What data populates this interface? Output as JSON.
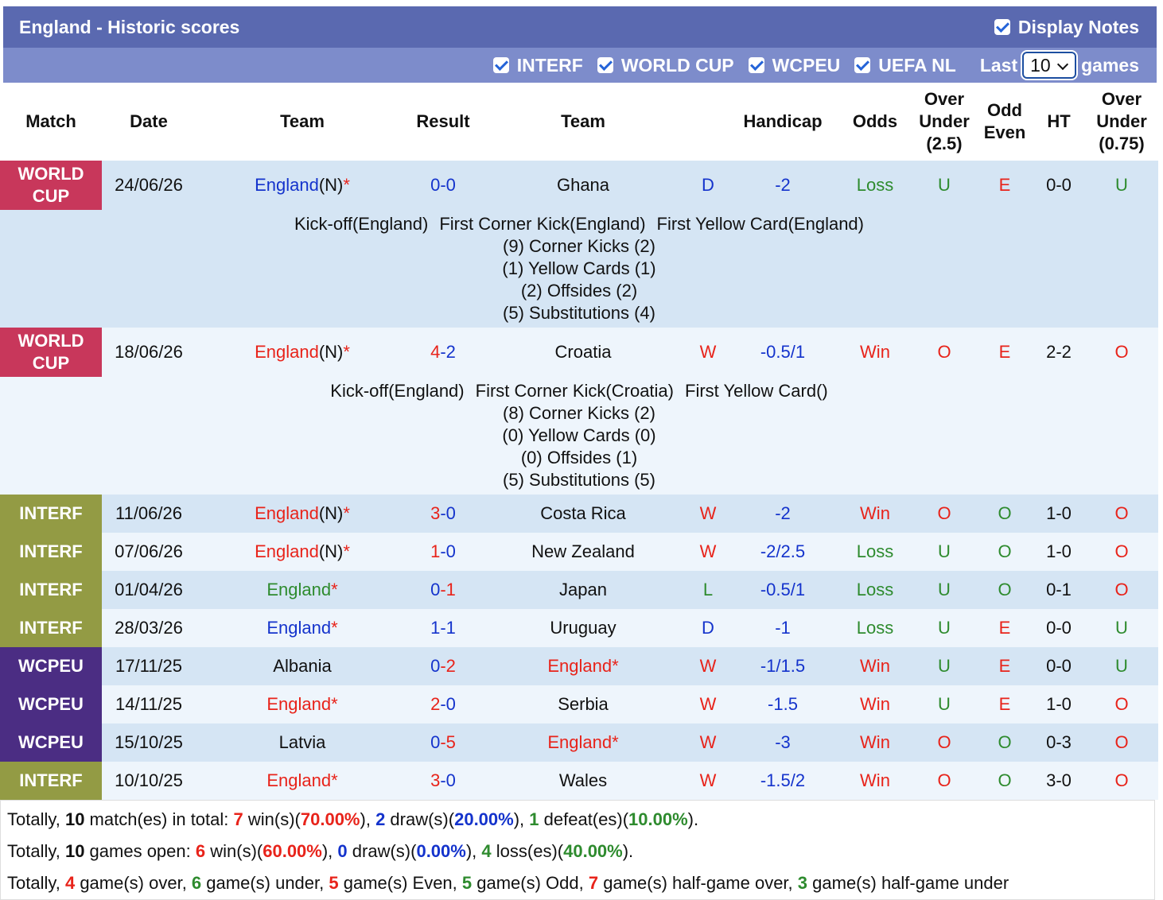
{
  "header": {
    "title": "England - Historic scores",
    "display_notes": "Display Notes"
  },
  "filters": {
    "items": [
      "INTERF",
      "WORLD CUP",
      "WCPEU",
      "UEFA NL"
    ],
    "last_label": "Last",
    "last_value": "10",
    "games_label": "games"
  },
  "palette": {
    "r": "#e8231a",
    "b": "#1433cc",
    "g": "#2e8b2e",
    "k": "#111111",
    "B": "#111111"
  },
  "table": {
    "columns": [
      "Match",
      "Date",
      "Team",
      "Result",
      "Team",
      "Handicap",
      "Odds",
      "Over Under (2.5)",
      "Odd Even",
      "HT",
      "Over Under (0.75)"
    ],
    "rows": [
      {
        "match": "WORLD CUP",
        "match_color": "#c8375b",
        "date": "24/06/26",
        "cells": [
          [
            [
              "England",
              "b"
            ],
            [
              "(N)",
              "k"
            ],
            [
              "*",
              "r"
            ]
          ],
          [
            [
              "0",
              "b"
            ],
            [
              "-0",
              "b"
            ]
          ],
          [
            [
              "Ghana",
              "k"
            ]
          ],
          [
            [
              "D",
              "b"
            ]
          ],
          [
            [
              "-2",
              "b"
            ]
          ],
          [
            [
              "Loss",
              "g"
            ]
          ],
          [
            [
              "U",
              "g"
            ]
          ],
          [
            [
              "E",
              "r"
            ]
          ],
          [
            [
              "0-0",
              "k"
            ]
          ],
          [
            [
              "U",
              "g"
            ]
          ]
        ],
        "notes": {
          "events": [
            "Kick-off(England)",
            "First Corner Kick(England)",
            "First Yellow Card(England)"
          ],
          "lines": [
            "(9) Corner Kicks (2)",
            "(1) Yellow Cards (1)",
            "(2) Offsides (2)",
            "(5) Substitutions (4)"
          ]
        }
      },
      {
        "match": "WORLD CUP",
        "match_color": "#c8375b",
        "date": "18/06/26",
        "cells": [
          [
            [
              "England",
              "r"
            ],
            [
              "(N)",
              "k"
            ],
            [
              "*",
              "r"
            ]
          ],
          [
            [
              "4",
              "r"
            ],
            [
              "-2",
              "b"
            ]
          ],
          [
            [
              "Croatia",
              "k"
            ]
          ],
          [
            [
              "W",
              "r"
            ]
          ],
          [
            [
              "-0.5/1",
              "b"
            ]
          ],
          [
            [
              "Win",
              "r"
            ]
          ],
          [
            [
              "O",
              "r"
            ]
          ],
          [
            [
              "E",
              "r"
            ]
          ],
          [
            [
              "2-2",
              "k"
            ]
          ],
          [
            [
              "O",
              "r"
            ]
          ]
        ],
        "notes": {
          "events": [
            "Kick-off(England)",
            "First Corner Kick(Croatia)",
            "First Yellow Card()"
          ],
          "lines": [
            "(8) Corner Kicks (2)",
            "(0) Yellow Cards (0)",
            "(0) Offsides (1)",
            "(5) Substitutions (5)"
          ]
        }
      },
      {
        "match": "INTERF",
        "match_color": "#939b44",
        "date": "11/06/26",
        "cells": [
          [
            [
              "England",
              "r"
            ],
            [
              "(N)",
              "k"
            ],
            [
              "*",
              "r"
            ]
          ],
          [
            [
              "3",
              "r"
            ],
            [
              "-0",
              "b"
            ]
          ],
          [
            [
              "Costa Rica",
              "k"
            ]
          ],
          [
            [
              "W",
              "r"
            ]
          ],
          [
            [
              "-2",
              "b"
            ]
          ],
          [
            [
              "Win",
              "r"
            ]
          ],
          [
            [
              "O",
              "r"
            ]
          ],
          [
            [
              "O",
              "g"
            ]
          ],
          [
            [
              "1-0",
              "k"
            ]
          ],
          [
            [
              "O",
              "r"
            ]
          ]
        ]
      },
      {
        "match": "INTERF",
        "match_color": "#939b44",
        "date": "07/06/26",
        "cells": [
          [
            [
              "England",
              "r"
            ],
            [
              "(N)",
              "k"
            ],
            [
              "*",
              "r"
            ]
          ],
          [
            [
              "1",
              "r"
            ],
            [
              "-0",
              "b"
            ]
          ],
          [
            [
              "New Zealand",
              "k"
            ]
          ],
          [
            [
              "W",
              "r"
            ]
          ],
          [
            [
              "-2/2.5",
              "b"
            ]
          ],
          [
            [
              "Loss",
              "g"
            ]
          ],
          [
            [
              "U",
              "g"
            ]
          ],
          [
            [
              "O",
              "g"
            ]
          ],
          [
            [
              "1-0",
              "k"
            ]
          ],
          [
            [
              "O",
              "r"
            ]
          ]
        ]
      },
      {
        "match": "INTERF",
        "match_color": "#939b44",
        "date": "01/04/26",
        "cells": [
          [
            [
              "England",
              "g"
            ],
            [
              "*",
              "r"
            ]
          ],
          [
            [
              "0",
              "b"
            ],
            [
              "-1",
              "r"
            ]
          ],
          [
            [
              "Japan",
              "k"
            ]
          ],
          [
            [
              "L",
              "g"
            ]
          ],
          [
            [
              "-0.5/1",
              "b"
            ]
          ],
          [
            [
              "Loss",
              "g"
            ]
          ],
          [
            [
              "U",
              "g"
            ]
          ],
          [
            [
              "O",
              "g"
            ]
          ],
          [
            [
              "0-1",
              "k"
            ]
          ],
          [
            [
              "O",
              "r"
            ]
          ]
        ]
      },
      {
        "match": "INTERF",
        "match_color": "#939b44",
        "date": "28/03/26",
        "cells": [
          [
            [
              "England",
              "b"
            ],
            [
              "*",
              "r"
            ]
          ],
          [
            [
              "1",
              "b"
            ],
            [
              "-1",
              "b"
            ]
          ],
          [
            [
              "Uruguay",
              "k"
            ]
          ],
          [
            [
              "D",
              "b"
            ]
          ],
          [
            [
              "-1",
              "b"
            ]
          ],
          [
            [
              "Loss",
              "g"
            ]
          ],
          [
            [
              "U",
              "g"
            ]
          ],
          [
            [
              "E",
              "r"
            ]
          ],
          [
            [
              "0-0",
              "k"
            ]
          ],
          [
            [
              "U",
              "g"
            ]
          ]
        ]
      },
      {
        "match": "WCPEU",
        "match_color": "#4b2d83",
        "date": "17/11/25",
        "cells": [
          [
            [
              "Albania",
              "k"
            ]
          ],
          [
            [
              "0",
              "b"
            ],
            [
              "-2",
              "r"
            ]
          ],
          [
            [
              "England",
              "r"
            ],
            [
              "*",
              "r"
            ]
          ],
          [
            [
              "W",
              "r"
            ]
          ],
          [
            [
              "-1/1.5",
              "b"
            ]
          ],
          [
            [
              "Win",
              "r"
            ]
          ],
          [
            [
              "U",
              "g"
            ]
          ],
          [
            [
              "E",
              "r"
            ]
          ],
          [
            [
              "0-0",
              "k"
            ]
          ],
          [
            [
              "U",
              "g"
            ]
          ]
        ]
      },
      {
        "match": "WCPEU",
        "match_color": "#4b2d83",
        "date": "14/11/25",
        "cells": [
          [
            [
              "England",
              "r"
            ],
            [
              "*",
              "r"
            ]
          ],
          [
            [
              "2",
              "r"
            ],
            [
              "-0",
              "b"
            ]
          ],
          [
            [
              "Serbia",
              "k"
            ]
          ],
          [
            [
              "W",
              "r"
            ]
          ],
          [
            [
              "-1.5",
              "b"
            ]
          ],
          [
            [
              "Win",
              "r"
            ]
          ],
          [
            [
              "U",
              "g"
            ]
          ],
          [
            [
              "E",
              "r"
            ]
          ],
          [
            [
              "1-0",
              "k"
            ]
          ],
          [
            [
              "O",
              "r"
            ]
          ]
        ]
      },
      {
        "match": "WCPEU",
        "match_color": "#4b2d83",
        "date": "15/10/25",
        "cells": [
          [
            [
              "Latvia",
              "k"
            ]
          ],
          [
            [
              "0",
              "b"
            ],
            [
              "-5",
              "r"
            ]
          ],
          [
            [
              "England",
              "r"
            ],
            [
              "*",
              "r"
            ]
          ],
          [
            [
              "W",
              "r"
            ]
          ],
          [
            [
              "-3",
              "b"
            ]
          ],
          [
            [
              "Win",
              "r"
            ]
          ],
          [
            [
              "O",
              "r"
            ]
          ],
          [
            [
              "O",
              "g"
            ]
          ],
          [
            [
              "0-3",
              "k"
            ]
          ],
          [
            [
              "O",
              "r"
            ]
          ]
        ]
      },
      {
        "match": "INTERF",
        "match_color": "#939b44",
        "date": "10/10/25",
        "cells": [
          [
            [
              "England",
              "r"
            ],
            [
              "*",
              "r"
            ]
          ],
          [
            [
              "3",
              "r"
            ],
            [
              "-0",
              "b"
            ]
          ],
          [
            [
              "Wales",
              "k"
            ]
          ],
          [
            [
              "W",
              "r"
            ]
          ],
          [
            [
              "-1.5/2",
              "b"
            ]
          ],
          [
            [
              "Win",
              "r"
            ]
          ],
          [
            [
              "O",
              "r"
            ]
          ],
          [
            [
              "O",
              "g"
            ]
          ],
          [
            [
              "3-0",
              "k"
            ]
          ],
          [
            [
              "O",
              "r"
            ]
          ]
        ]
      }
    ]
  },
  "summary": [
    [
      [
        "Totally, ",
        "k"
      ],
      [
        "10",
        "B"
      ],
      [
        " match(es) in total: ",
        "k"
      ],
      [
        "7",
        "r"
      ],
      [
        " win(s)(",
        "k"
      ],
      [
        "70.00%",
        "r"
      ],
      [
        "), ",
        "k"
      ],
      [
        "2",
        "b"
      ],
      [
        " draw(s)(",
        "k"
      ],
      [
        "20.00%",
        "b"
      ],
      [
        "), ",
        "k"
      ],
      [
        "1",
        "g"
      ],
      [
        " defeat(es)(",
        "k"
      ],
      [
        "10.00%",
        "g"
      ],
      [
        ").",
        "k"
      ]
    ],
    [
      [
        "Totally, ",
        "k"
      ],
      [
        "10",
        "B"
      ],
      [
        " games open: ",
        "k"
      ],
      [
        "6",
        "r"
      ],
      [
        " win(s)(",
        "k"
      ],
      [
        "60.00%",
        "r"
      ],
      [
        "), ",
        "k"
      ],
      [
        "0",
        "b"
      ],
      [
        " draw(s)(",
        "k"
      ],
      [
        "0.00%",
        "b"
      ],
      [
        "), ",
        "k"
      ],
      [
        "4",
        "g"
      ],
      [
        " loss(es)(",
        "k"
      ],
      [
        "40.00%",
        "g"
      ],
      [
        ").",
        "k"
      ]
    ],
    [
      [
        "Totally, ",
        "k"
      ],
      [
        "4",
        "r"
      ],
      [
        " game(s) over, ",
        "k"
      ],
      [
        "6",
        "g"
      ],
      [
        " game(s) under, ",
        "k"
      ],
      [
        "5",
        "r"
      ],
      [
        " game(s) Even, ",
        "k"
      ],
      [
        "5",
        "g"
      ],
      [
        " game(s) Odd, ",
        "k"
      ],
      [
        "7",
        "r"
      ],
      [
        " game(s) half-game over, ",
        "k"
      ],
      [
        "3",
        "g"
      ],
      [
        " game(s) half-game under",
        "k"
      ]
    ]
  ]
}
